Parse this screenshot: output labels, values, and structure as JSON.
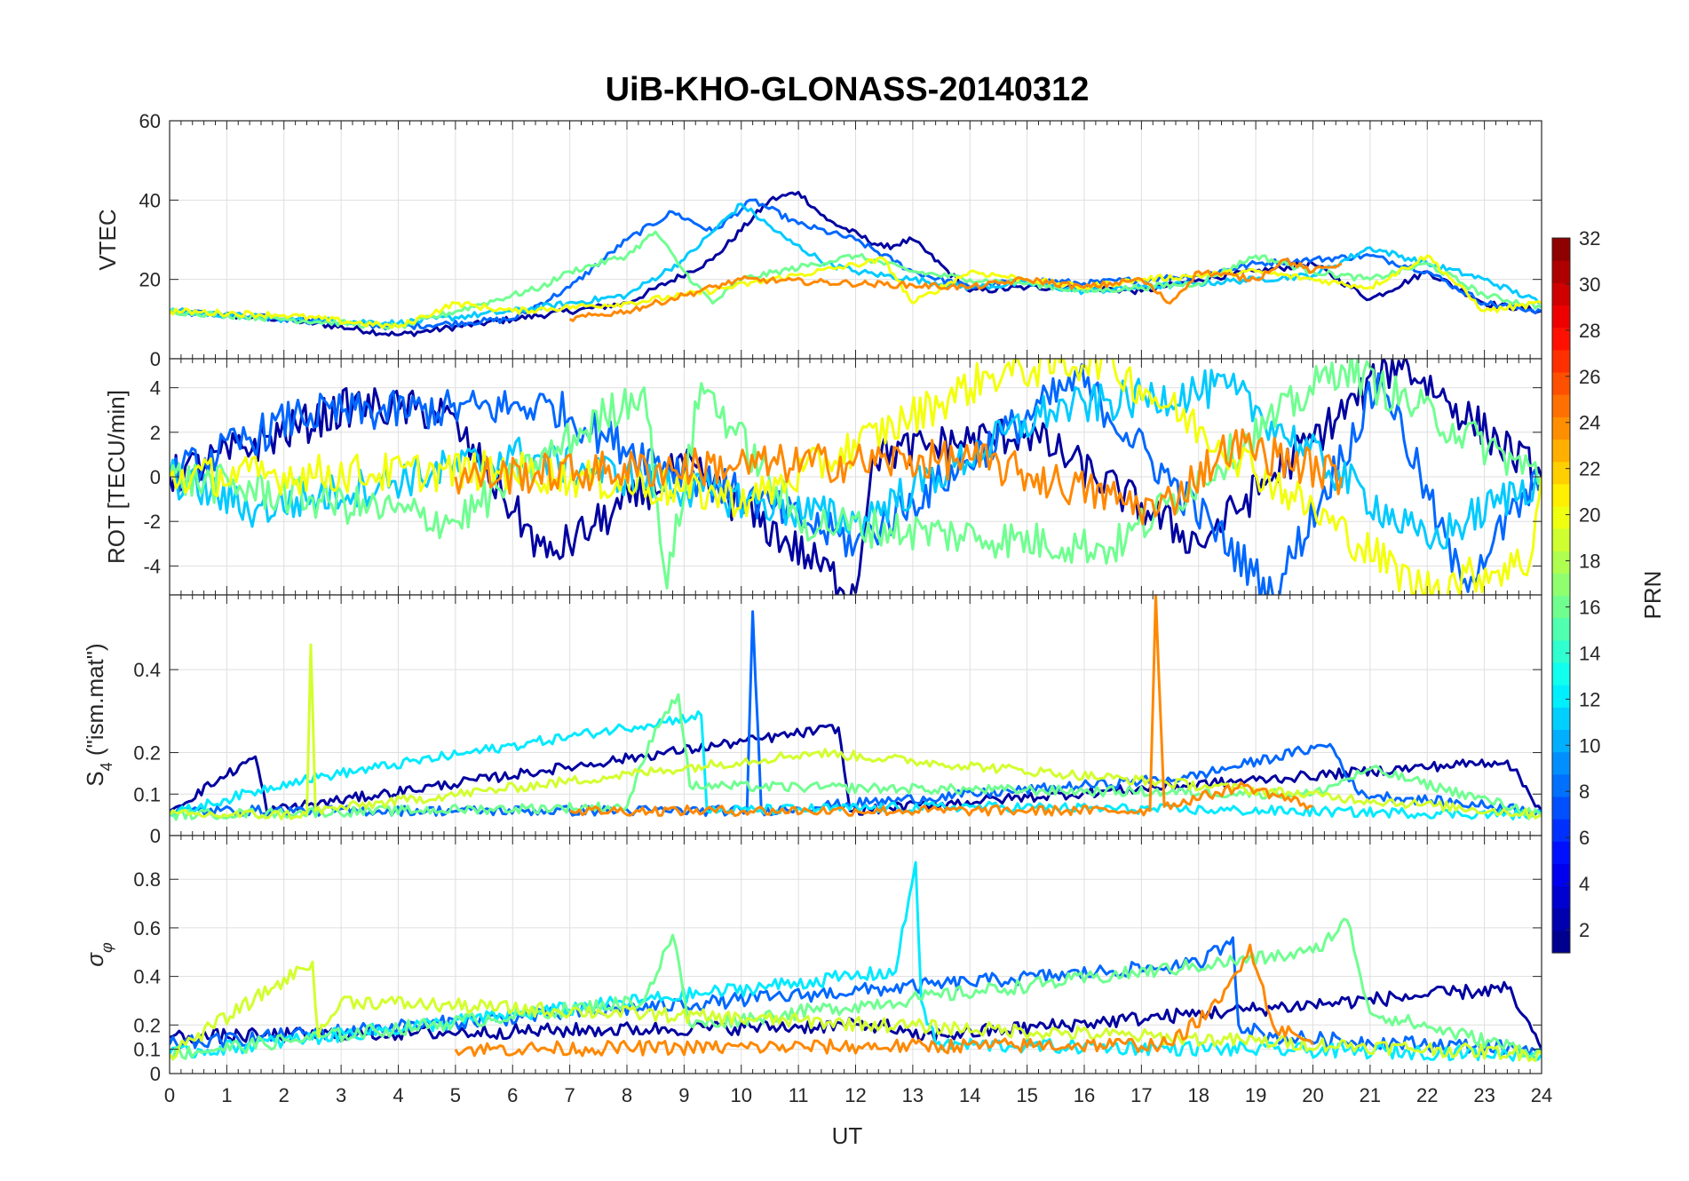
{
  "figure": {
    "title": "UiB-KHO-GLONASS-20140312",
    "xlabel": "UT",
    "colorbar_label": "PRN"
  },
  "chart_data": [
    {
      "type": "line",
      "panel": "VTEC",
      "ylabel": "VTEC",
      "xlim": [
        0,
        24
      ],
      "ylim": [
        0,
        60
      ],
      "yticks": [
        0,
        20,
        40,
        60
      ],
      "grid": true,
      "series": [
        {
          "prn": 2,
          "x": [
            0,
            2,
            4,
            6,
            8,
            9.5,
            10.5,
            11,
            11.5,
            12.5,
            13,
            14,
            15,
            16,
            17,
            18,
            19,
            20,
            21,
            22,
            23,
            24
          ],
          "y": [
            12,
            10,
            6,
            10,
            14,
            25,
            40,
            42,
            35,
            28,
            30,
            17,
            18,
            18,
            17,
            20,
            22,
            24,
            15,
            22,
            14,
            12
          ]
        },
        {
          "prn": 8,
          "x": [
            0,
            2,
            4,
            6,
            7,
            8,
            8.8,
            9.5,
            10.2,
            11,
            12,
            13,
            14,
            15,
            16,
            17,
            18,
            19,
            20,
            21,
            22,
            23,
            24
          ],
          "y": [
            12,
            10,
            8,
            10,
            18,
            30,
            37,
            32,
            40,
            34,
            30,
            22,
            18,
            20,
            19,
            20,
            21,
            24,
            25,
            26,
            22,
            14,
            12
          ]
        },
        {
          "prn": 11,
          "x": [
            0,
            2,
            4,
            6,
            8,
            9,
            10,
            10.8,
            11.5,
            12,
            13,
            14,
            15,
            16,
            17,
            18,
            19,
            20,
            21,
            22,
            23,
            24
          ],
          "y": [
            12,
            10,
            9,
            12,
            16,
            25,
            39,
            30,
            24,
            22,
            20,
            18,
            19,
            17,
            18,
            19,
            20,
            21,
            28,
            24,
            20,
            14
          ]
        },
        {
          "prn": 16,
          "x": [
            0,
            2,
            4,
            5.5,
            6.5,
            7,
            8,
            8.5,
            9,
            9.5,
            10,
            12,
            13,
            14,
            15,
            16,
            17,
            18,
            19,
            20,
            21,
            22,
            23,
            24
          ],
          "y": [
            12,
            10,
            8,
            14,
            18,
            22,
            26,
            32,
            22,
            14,
            20,
            26,
            22,
            20,
            19,
            17,
            18,
            19,
            26,
            22,
            20,
            24,
            16,
            13
          ]
        },
        {
          "prn": 20,
          "x": [
            0,
            2,
            4,
            5,
            6,
            8,
            9,
            12.5,
            13,
            14,
            15,
            16,
            17,
            18,
            19,
            20,
            21,
            22,
            23,
            24
          ],
          "y": [
            12,
            11,
            8,
            14,
            12,
            14,
            16,
            25,
            14,
            22,
            20,
            18,
            20,
            21,
            22,
            20,
            18,
            26,
            12,
            14
          ]
        },
        {
          "prn": 24,
          "x": [
            7,
            8,
            9,
            10,
            14,
            15,
            16,
            17,
            17.5,
            18,
            19,
            19.5,
            20,
            20.5
          ],
          "y": [
            10,
            12,
            16,
            20,
            18,
            20,
            18,
            20,
            14,
            22,
            20,
            25,
            22,
            24
          ]
        }
      ]
    },
    {
      "type": "line",
      "panel": "ROT",
      "ylabel": "ROT [TECU/min]",
      "xlim": [
        0,
        24
      ],
      "ylim": [
        -5.3,
        5.3
      ],
      "yticks": [
        -4,
        -2,
        0,
        2,
        4
      ],
      "grid": true,
      "series": [
        {
          "prn": 2,
          "x": [
            0,
            3.2,
            4.8,
            6.6,
            9,
            12,
            12.3,
            15,
            18,
            21.5,
            24
          ],
          "y": [
            0,
            3.2,
            2.9,
            -3.6,
            0.5,
            -5.2,
            1,
            2,
            -3,
            5.2,
            0
          ]
        },
        {
          "prn": 8,
          "x": [
            0,
            2.3,
            6.7,
            7.6,
            12,
            15.9,
            19.3,
            21.2,
            22.6,
            24
          ],
          "y": [
            0,
            2.8,
            3.2,
            1.8,
            -3,
            4.4,
            -5.3,
            4.5,
            -4.8,
            0
          ]
        },
        {
          "prn": 11,
          "x": [
            0,
            1.5,
            6,
            12,
            15.4,
            18.5,
            22,
            24
          ],
          "y": [
            0,
            -1.5,
            1,
            -2,
            3,
            4,
            -3,
            0
          ]
        },
        {
          "prn": 16,
          "x": [
            0,
            5,
            8.3,
            8.7,
            9.3,
            11,
            16.5,
            20.5,
            24
          ],
          "y": [
            0,
            -2,
            4,
            -5,
            4.2,
            -2,
            -3.2,
            5,
            0
          ]
        },
        {
          "prn": 20,
          "x": [
            0,
            6,
            10.2,
            14.4,
            16.3,
            21.9,
            23.8,
            24
          ],
          "y": [
            0,
            0.3,
            -1,
            4.6,
            5.3,
            -5,
            -3.8,
            0
          ]
        },
        {
          "prn": 24,
          "x": [
            5,
            9.8,
            14,
            17.3,
            18.6,
            20.5
          ],
          "y": [
            0,
            0.5,
            0.8,
            -1.5,
            1.5,
            0
          ]
        }
      ]
    },
    {
      "type": "line",
      "panel": "S4",
      "ylabel": "S4 (\"ism.mat\")",
      "xlim": [
        0,
        24
      ],
      "ylim": [
        0,
        0.58
      ],
      "yticks": [
        0,
        0.1,
        0.2,
        0.4
      ],
      "grid": true,
      "series": [
        {
          "prn": 2,
          "x": [
            0,
            1.5,
            1.7,
            11.7,
            11.9,
            23.4,
            24
          ],
          "y": [
            0.06,
            0.19,
            0.06,
            0.26,
            0.06,
            0.18,
            0.06
          ]
        },
        {
          "prn": 8,
          "x": [
            0,
            10.1,
            10.2,
            10.35,
            17.8,
            20.3,
            20.8,
            24
          ],
          "y": [
            0.06,
            0.06,
            0.54,
            0.06,
            0.14,
            0.22,
            0.1,
            0.06
          ]
        },
        {
          "prn": 12,
          "x": [
            0,
            2.1,
            9.3,
            9.4,
            14,
            24
          ],
          "y": [
            0.05,
            0.13,
            0.29,
            0.06,
            0.07,
            0.05
          ]
        },
        {
          "prn": 16,
          "x": [
            0,
            8,
            8.5,
            8.9,
            9.1,
            20,
            21,
            24
          ],
          "y": [
            0.05,
            0.07,
            0.26,
            0.34,
            0.12,
            0.1,
            0.16,
            0.05
          ]
        },
        {
          "prn": 19,
          "x": [
            0,
            2.4,
            2.47,
            2.55,
            11.3,
            24
          ],
          "y": [
            0.05,
            0.05,
            0.46,
            0.06,
            0.2,
            0.05
          ]
        },
        {
          "prn": 24,
          "x": [
            7,
            17.15,
            17.25,
            17.4,
            18.8,
            20
          ],
          "y": [
            0.06,
            0.06,
            0.58,
            0.07,
            0.12,
            0.07
          ]
        }
      ]
    },
    {
      "type": "line",
      "panel": "sigma_phi",
      "ylabel": "σφ",
      "xlim": [
        0,
        24
      ],
      "xticks": [
        0,
        1,
        2,
        3,
        4,
        5,
        6,
        7,
        8,
        9,
        10,
        11,
        12,
        13,
        14,
        15,
        16,
        17,
        18,
        19,
        20,
        21,
        22,
        23,
        24
      ],
      "ylim": [
        0,
        0.98
      ],
      "yticks": [
        0,
        0.1,
        0.2,
        0.4,
        0.6,
        0.8
      ],
      "grid": true,
      "series": [
        {
          "prn": 2,
          "x": [
            0,
            12.5,
            13,
            23.4,
            24
          ],
          "y": [
            0.15,
            0.2,
            0.15,
            0.35,
            0.1
          ]
        },
        {
          "prn": 8,
          "x": [
            0,
            18,
            18.6,
            18.7,
            19.3,
            24
          ],
          "y": [
            0.12,
            0.45,
            0.56,
            0.2,
            0.15,
            0.1
          ]
        },
        {
          "prn": 12,
          "x": [
            0,
            12.7,
            13.05,
            13.15,
            13.4,
            24
          ],
          "y": [
            0.08,
            0.42,
            0.87,
            0.3,
            0.12,
            0.08
          ]
        },
        {
          "prn": 16,
          "x": [
            0,
            8.3,
            8.8,
            9.1,
            20,
            20.6,
            21,
            24
          ],
          "y": [
            0.08,
            0.3,
            0.57,
            0.2,
            0.5,
            0.63,
            0.25,
            0.08
          ]
        },
        {
          "prn": 19,
          "x": [
            0,
            2.5,
            2.6,
            3,
            24
          ],
          "y": [
            0.08,
            0.46,
            0.15,
            0.3,
            0.08
          ]
        },
        {
          "prn": 24,
          "x": [
            5,
            17.5,
            18.4,
            18.9,
            19.3,
            20
          ],
          "y": [
            0.1,
            0.12,
            0.3,
            0.53,
            0.2,
            0.12
          ]
        }
      ]
    }
  ],
  "colorbar": {
    "label": "PRN",
    "min": 1,
    "max": 32,
    "ticks": [
      2,
      4,
      6,
      8,
      10,
      12,
      14,
      16,
      18,
      20,
      22,
      24,
      26,
      28,
      30,
      32
    ],
    "colormap": "jet"
  }
}
